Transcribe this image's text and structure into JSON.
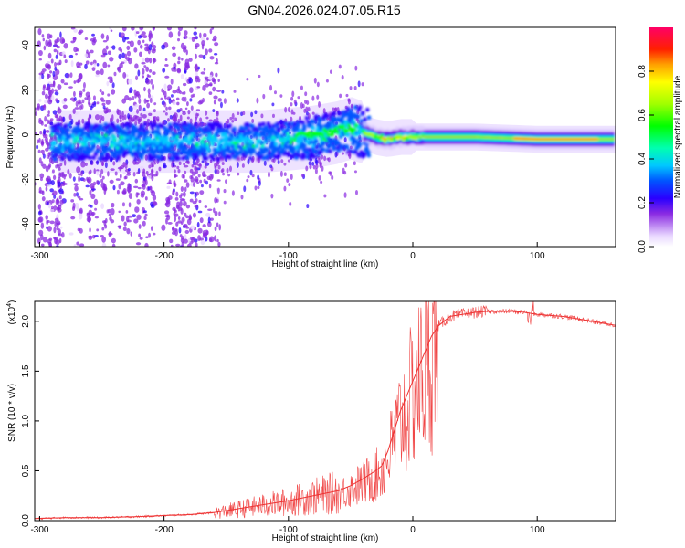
{
  "title": "GN04.2026.024.07.05.R15",
  "chart_data": [
    {
      "type": "heatmap",
      "name": "spectrogram",
      "xlabel": "Height of straight line (km)",
      "ylabel": "Frequency (Hz)",
      "xlim": [
        -304,
        163
      ],
      "ylim": [
        -50,
        48
      ],
      "xticks": [
        -300,
        -200,
        -100,
        0,
        100
      ],
      "xtick_labels": [
        "-300",
        "-200",
        "-100",
        "0",
        "100"
      ],
      "yticks": [
        -40,
        -20,
        0,
        20,
        40
      ],
      "ytick_labels": [
        "-40",
        "-20",
        "0",
        "20",
        "40"
      ],
      "center_line": {
        "x": [
          -300,
          -280,
          -250,
          -200,
          -150,
          -120,
          -100,
          -80,
          -60,
          -50,
          -40,
          -30,
          -20,
          -10,
          0,
          20,
          50,
          100,
          140,
          163
        ],
        "y": [
          -3,
          -3,
          -3,
          -3,
          -3,
          -3,
          -2,
          -1,
          1,
          3,
          1,
          -1,
          -2,
          -1,
          -1,
          -1,
          -1,
          -2,
          -2,
          -2
        ]
      },
      "colorbar": {
        "label": "Normalized spectral amplitude",
        "range": [
          0,
          1
        ],
        "ticks": [
          0.0,
          0.2,
          0.4,
          0.6,
          0.8
        ],
        "tick_labels": [
          "0.0",
          "0.2",
          "0.4",
          "0.6",
          "0.8"
        ]
      }
    },
    {
      "type": "line",
      "name": "snr",
      "xlabel": "Height of straight line (km)",
      "ylabel": "SNR (10 * v/v)",
      "scale_label": "(x10",
      "scale_exponent": "4",
      "scale_suffix": ")",
      "xlim": [
        -304,
        163
      ],
      "ylim": [
        0,
        2.2
      ],
      "xticks": [
        -300,
        -200,
        -100,
        0,
        100
      ],
      "xtick_labels": [
        "-300",
        "-200",
        "-100",
        "0",
        "100"
      ],
      "yticks": [
        0.0,
        0.5,
        1.0,
        1.5,
        2.0
      ],
      "ytick_labels": [
        "0.0",
        "0.5",
        "1.0",
        "1.5",
        "2.0"
      ],
      "series": [
        {
          "name": "SNR",
          "color": "#ee3333",
          "x": [
            -304,
            -280,
            -250,
            -220,
            -200,
            -180,
            -160,
            -140,
            -120,
            -100,
            -80,
            -60,
            -50,
            -40,
            -30,
            -25,
            -20,
            -15,
            -10,
            -5,
            0,
            5,
            10,
            15,
            20,
            25,
            30,
            40,
            50,
            60,
            70,
            80,
            90,
            95,
            100,
            120,
            140,
            163
          ],
          "y": [
            0.02,
            0.03,
            0.03,
            0.04,
            0.05,
            0.06,
            0.08,
            0.12,
            0.16,
            0.2,
            0.25,
            0.3,
            0.35,
            0.42,
            0.5,
            0.55,
            0.7,
            0.9,
            1.1,
            1.25,
            1.4,
            1.55,
            1.7,
            1.85,
            1.95,
            2.0,
            2.05,
            2.07,
            2.09,
            2.1,
            2.1,
            2.1,
            2.09,
            2.08,
            2.07,
            2.05,
            2.01,
            1.96
          ]
        }
      ]
    }
  ]
}
